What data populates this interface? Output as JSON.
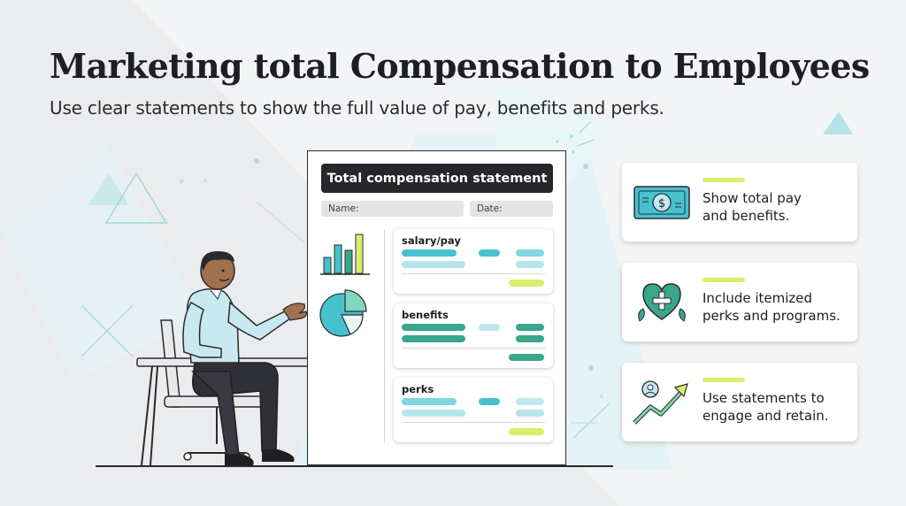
{
  "header": {
    "title": "Marketing total Compensation to Employees",
    "subtitle": "Use clear statements to show the full value of pay, benefits and perks."
  },
  "statement": {
    "title": "Total compensation statement",
    "name_label": "Name:",
    "date_label": "Date:",
    "sections": [
      {
        "label": "salary/pay"
      },
      {
        "label": "benefits"
      },
      {
        "label": "perks"
      }
    ]
  },
  "cards": [
    {
      "icon": "dollar-bill-icon",
      "line1": "Show total pay",
      "line2": "and benefits."
    },
    {
      "icon": "heart-plus-icon",
      "line1": "Include itemized",
      "line2": "perks and programs."
    },
    {
      "icon": "growth-arrow-icon",
      "line1": "Use statements to",
      "line2": "engage and retain."
    }
  ],
  "colors": {
    "accent_teal": "#46c2cf",
    "accent_green": "#3aa68c",
    "accent_lime": "#d8ef6a",
    "dark": "#26272b"
  }
}
